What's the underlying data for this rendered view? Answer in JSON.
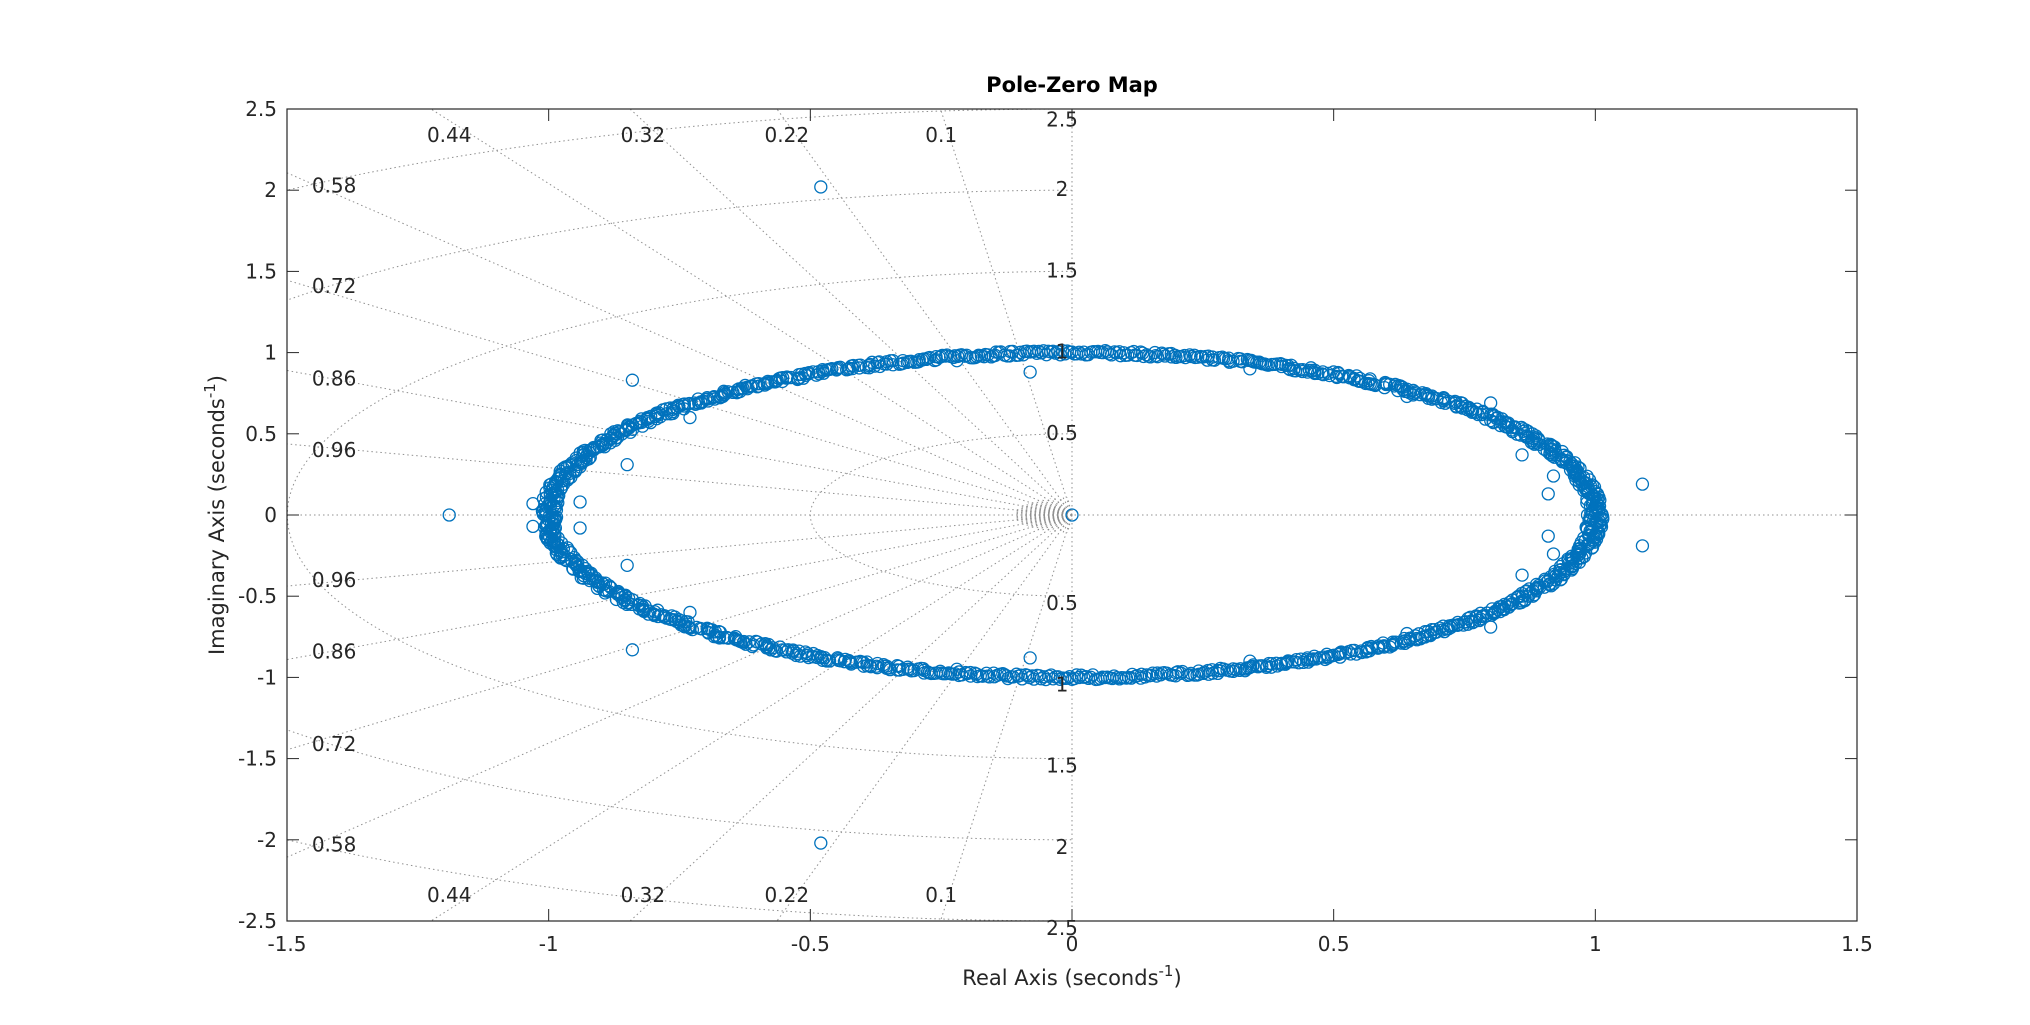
{
  "chart_data": {
    "type": "scatter",
    "title": "Pole-Zero Map",
    "xlabel": "Real Axis (seconds",
    "xlabel_sup": "-1",
    "xlabel_end": ")",
    "ylabel": "Imaginary Axis (seconds",
    "ylabel_sup": "-1",
    "ylabel_end": ")",
    "xlim": [
      -1.5,
      1.5
    ],
    "ylim": [
      -2.5,
      2.5
    ],
    "x_ticks": [
      -1.5,
      -1,
      -0.5,
      0,
      0.5,
      1,
      1.5
    ],
    "x_tick_labels": [
      "-1.5",
      "-1",
      "-0.5",
      "0",
      "0.5",
      "1",
      "1.5"
    ],
    "y_ticks": [
      -2.5,
      -2,
      -1.5,
      -1,
      -0.5,
      0,
      0.5,
      1,
      1.5,
      2,
      2.5
    ],
    "y_tick_labels": [
      "-2.5",
      "-2",
      "-1.5",
      "-1",
      "-0.5",
      "0",
      "0.5",
      "1",
      "1.5",
      "2",
      "2.5"
    ],
    "grid": true,
    "marker": "o",
    "marker_color": "#0072BD",
    "damping_ratios": [
      0.1,
      0.22,
      0.32,
      0.44,
      0.58,
      0.72,
      0.86,
      0.96
    ],
    "damping_labels": [
      "0.1",
      "0.22",
      "0.32",
      "0.44",
      "0.58",
      "0.72",
      "0.86",
      "0.96"
    ],
    "natural_frequencies": [
      0.5,
      1,
      1.5,
      2,
      2.5
    ],
    "frequency_labels": [
      "0.5",
      "1",
      "1.5",
      "2",
      "2.5"
    ],
    "ring": {
      "description": "dense ring of poles/zeros",
      "center": [
        0,
        0
      ],
      "radius_x": 1.0,
      "radius_y": 1.0,
      "thickness": 0.03,
      "count": 1400
    },
    "points": [
      {
        "x": 0,
        "y": 0
      },
      {
        "x": -1.19,
        "y": 0
      },
      {
        "x": -1.03,
        "y": 0.07
      },
      {
        "x": -1.03,
        "y": -0.07
      },
      {
        "x": -0.94,
        "y": 0.08
      },
      {
        "x": -0.94,
        "y": -0.08
      },
      {
        "x": -0.85,
        "y": 0.31
      },
      {
        "x": -0.85,
        "y": -0.31
      },
      {
        "x": -0.84,
        "y": 0.83
      },
      {
        "x": -0.84,
        "y": -0.83
      },
      {
        "x": -0.73,
        "y": 0.6
      },
      {
        "x": -0.73,
        "y": -0.6
      },
      {
        "x": -0.48,
        "y": 2.02
      },
      {
        "x": -0.48,
        "y": -2.02
      },
      {
        "x": -0.22,
        "y": 0.95
      },
      {
        "x": -0.22,
        "y": -0.95
      },
      {
        "x": -0.08,
        "y": 0.88
      },
      {
        "x": -0.08,
        "y": -0.88
      },
      {
        "x": 0.34,
        "y": 0.9
      },
      {
        "x": 0.34,
        "y": -0.9
      },
      {
        "x": 0.45,
        "y": 0.88
      },
      {
        "x": 0.45,
        "y": -0.88
      },
      {
        "x": 0.64,
        "y": 0.73
      },
      {
        "x": 0.64,
        "y": -0.73
      },
      {
        "x": 0.8,
        "y": 0.69
      },
      {
        "x": 0.8,
        "y": -0.69
      },
      {
        "x": 0.86,
        "y": 0.37
      },
      {
        "x": 0.86,
        "y": -0.37
      },
      {
        "x": 0.92,
        "y": 0.24
      },
      {
        "x": 0.92,
        "y": -0.24
      },
      {
        "x": 0.91,
        "y": 0.13
      },
      {
        "x": 0.91,
        "y": -0.13
      },
      {
        "x": 1.09,
        "y": 0.19
      },
      {
        "x": 1.09,
        "y": -0.19
      }
    ]
  }
}
